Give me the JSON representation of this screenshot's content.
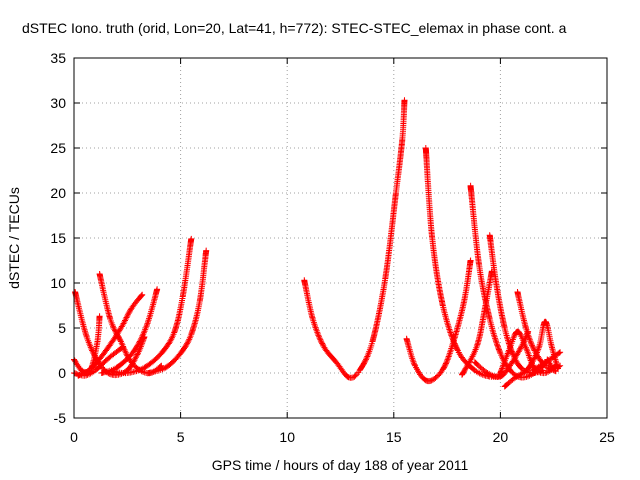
{
  "chart_data": {
    "type": "scatter",
    "title": "dSTEC Iono. truth (orid, Lon=20, Lat=41, h=772): STEC-STEC_elemax in phase cont. a",
    "xlabel": "GPS time / hours of day 188 of year 2011",
    "ylabel": "dSTEC  / TECUs",
    "xlim": [
      0,
      25
    ],
    "ylim": [
      -5,
      35
    ],
    "xticks": [
      "0",
      "5",
      "10",
      "15",
      "20",
      "25"
    ],
    "yticks": [
      "-5",
      "0",
      "5",
      "10",
      "15",
      "20",
      "25",
      "30",
      "35"
    ],
    "xtick_values": [
      0,
      5,
      10,
      15,
      20,
      25
    ],
    "ytick_values": [
      -5,
      0,
      5,
      10,
      15,
      20,
      25,
      30,
      35
    ],
    "grid": true,
    "marker": "+",
    "color": "#ff0000",
    "arcs": [
      {
        "points": [
          [
            0.0,
            1.5
          ],
          [
            0.4,
            0.2
          ],
          [
            0.8,
            0.5
          ],
          [
            1.1,
            3.5
          ],
          [
            1.2,
            6.3
          ]
        ]
      },
      {
        "points": [
          [
            0.05,
            9.0
          ],
          [
            0.6,
            4.0
          ],
          [
            1.2,
            1.0
          ],
          [
            1.8,
            -0.2
          ],
          [
            2.5,
            0.3
          ],
          [
            3.0,
            2.2
          ],
          [
            3.3,
            4.0
          ]
        ]
      },
      {
        "points": [
          [
            0.2,
            -0.3
          ],
          [
            0.8,
            0.5
          ],
          [
            1.5,
            2.5
          ],
          [
            2.2,
            5.0
          ],
          [
            2.7,
            7.2
          ],
          [
            3.2,
            8.7
          ]
        ]
      },
      {
        "points": [
          [
            0.0,
            0.0
          ],
          [
            0.5,
            -0.3
          ],
          [
            1.0,
            0.3
          ],
          [
            1.6,
            1.6
          ],
          [
            2.3,
            2.9
          ]
        ]
      },
      {
        "points": [
          [
            1.2,
            11.0
          ],
          [
            1.7,
            6.0
          ],
          [
            2.2,
            3.5
          ],
          [
            2.6,
            1.5
          ],
          [
            3.1,
            0.3
          ],
          [
            3.6,
            0.0
          ],
          [
            4.1,
            0.8
          ]
        ]
      },
      {
        "points": [
          [
            1.3,
            0.0
          ],
          [
            2.0,
            0.6
          ],
          [
            2.8,
            2.4
          ],
          [
            3.4,
            5.2
          ],
          [
            3.9,
            9.3
          ]
        ]
      },
      {
        "points": [
          [
            1.8,
            0.2
          ],
          [
            2.5,
            0.0
          ],
          [
            3.3,
            0.6
          ],
          [
            4.1,
            2.2
          ],
          [
            4.7,
            4.5
          ],
          [
            5.1,
            8.5
          ],
          [
            5.5,
            14.9
          ]
        ]
      },
      {
        "points": [
          [
            3.5,
            0.0
          ],
          [
            4.3,
            0.6
          ],
          [
            5.0,
            2.2
          ],
          [
            5.5,
            4.3
          ],
          [
            5.9,
            8.0
          ],
          [
            6.2,
            13.6
          ]
        ]
      },
      {
        "points": [
          [
            10.8,
            10.3
          ],
          [
            11.2,
            6.0
          ],
          [
            11.7,
            3.0
          ],
          [
            12.3,
            1.2
          ],
          [
            12.9,
            -0.5
          ],
          [
            13.4,
            0.3
          ],
          [
            14.0,
            3.5
          ],
          [
            14.6,
            10.5
          ],
          [
            15.1,
            20.0
          ],
          [
            15.4,
            26.0
          ],
          [
            15.5,
            30.3
          ]
        ]
      },
      {
        "points": [
          [
            15.6,
            3.8
          ],
          [
            16.0,
            0.8
          ],
          [
            16.6,
            -0.9
          ],
          [
            17.3,
            0.4
          ],
          [
            17.8,
            3.5
          ],
          [
            18.3,
            8.0
          ],
          [
            18.6,
            12.5
          ]
        ]
      },
      {
        "points": [
          [
            16.5,
            25.0
          ],
          [
            16.8,
            15.0
          ],
          [
            17.3,
            7.5
          ],
          [
            18.0,
            2.5
          ],
          [
            18.8,
            0.3
          ],
          [
            19.5,
            -0.4
          ],
          [
            20.0,
            -0.3
          ]
        ]
      },
      {
        "points": [
          [
            18.6,
            20.8
          ],
          [
            19.0,
            12.0
          ],
          [
            19.5,
            6.0
          ],
          [
            20.0,
            2.2
          ],
          [
            20.5,
            0.2
          ],
          [
            21.0,
            -0.5
          ],
          [
            21.6,
            0.0
          ],
          [
            22.2,
            1.3
          ]
        ]
      },
      {
        "points": [
          [
            18.2,
            -0.2
          ],
          [
            18.9,
            3.0
          ],
          [
            19.3,
            7.5
          ],
          [
            19.6,
            11.3
          ]
        ]
      },
      {
        "points": [
          [
            18.8,
            1.2
          ],
          [
            19.4,
            0.0
          ],
          [
            20.0,
            -0.4
          ],
          [
            20.5,
            1.0
          ],
          [
            21.0,
            3.0
          ],
          [
            21.3,
            4.6
          ]
        ]
      },
      {
        "points": [
          [
            19.5,
            15.3
          ],
          [
            19.8,
            10.0
          ],
          [
            20.2,
            5.0
          ],
          [
            20.6,
            2.0
          ],
          [
            21.0,
            0.5
          ],
          [
            21.5,
            0.0
          ],
          [
            22.0,
            0.3
          ]
        ]
      },
      {
        "points": [
          [
            20.0,
            0.0
          ],
          [
            20.4,
            2.5
          ],
          [
            20.8,
            4.6
          ],
          [
            21.2,
            2.8
          ],
          [
            21.6,
            0.5
          ],
          [
            22.1,
            0.0
          ],
          [
            22.6,
            0.8
          ]
        ]
      },
      {
        "points": [
          [
            20.2,
            -1.5
          ],
          [
            20.7,
            -0.5
          ],
          [
            21.3,
            0.5
          ],
          [
            21.8,
            2.8
          ],
          [
            22.1,
            5.7
          ],
          [
            22.4,
            3.0
          ],
          [
            22.7,
            0.5
          ]
        ]
      },
      {
        "points": [
          [
            20.8,
            9.0
          ],
          [
            21.2,
            5.0
          ],
          [
            21.6,
            2.5
          ],
          [
            22.1,
            0.8
          ],
          [
            22.6,
            0.2
          ]
        ]
      },
      {
        "points": [
          [
            21.5,
            0.3
          ],
          [
            22.0,
            1.0
          ],
          [
            22.5,
            1.8
          ],
          [
            22.8,
            2.3
          ]
        ]
      },
      {
        "points": [
          [
            22.2,
            1.5
          ],
          [
            22.5,
            0.5
          ],
          [
            22.8,
            0.8
          ]
        ]
      }
    ]
  }
}
